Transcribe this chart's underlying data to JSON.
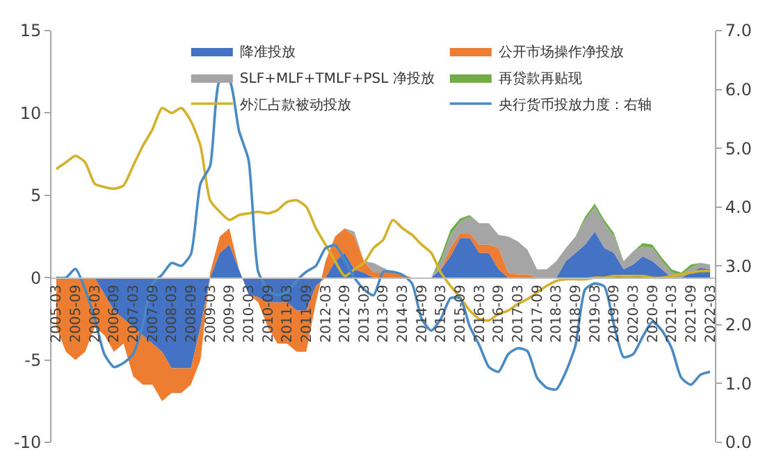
{
  "chart_data": {
    "type": "area",
    "stacked": true,
    "legend": "top",
    "categories": [
      "2005-03",
      null,
      "2005-09",
      null,
      "2006-03",
      null,
      "2006-09",
      null,
      "2007-03",
      null,
      "2007-09",
      null,
      "2008-03",
      null,
      "2008-09",
      null,
      "2009-03",
      null,
      "2009-09",
      null,
      "2010-03",
      null,
      "2010-09",
      null,
      "2011-03",
      null,
      "2011-09",
      null,
      "2012-03",
      null,
      "2012-09",
      null,
      "2013-03",
      null,
      "2013-09",
      null,
      "2014-03",
      null,
      "2014-09",
      null,
      "2015-03",
      null,
      "2015-09",
      null,
      "2016-03",
      null,
      "2016-09",
      null,
      "2017-03",
      null,
      "2017-09",
      null,
      "2018-03",
      null,
      "2018-09",
      null,
      "2019-03",
      null,
      "2019-09",
      null,
      "2020-03",
      null,
      "2020-09",
      null,
      "2021-03",
      null,
      "2021-09",
      null,
      "2022-03"
    ],
    "ylim": [
      -10,
      15
    ],
    "yticks": [
      -10,
      -5,
      0,
      5,
      10,
      15
    ],
    "y2lim": [
      0,
      7
    ],
    "y2ticks": [
      {
        "value": 0,
        "label": "0.0"
      },
      {
        "value": 1,
        "label": "1.0"
      },
      {
        "value": 2,
        "label": "2.0"
      },
      {
        "value": 3,
        "label": "3.0"
      },
      {
        "value": 4,
        "label": "4.0"
      },
      {
        "value": 5,
        "label": "5.0"
      },
      {
        "value": 6,
        "label": "6.0"
      },
      {
        "value": 7,
        "label": "7.0"
      }
    ],
    "series": [
      {
        "name": "降准投放",
        "type": "area",
        "color": "#4472c4",
        "values": [
          0,
          0,
          0,
          0,
          0,
          -1,
          -2,
          -2.5,
          -3,
          -3.5,
          -4,
          -4.5,
          -5.5,
          -5.5,
          -5.5,
          -3,
          0,
          1.5,
          2,
          0.5,
          -1,
          -1.2,
          -1.5,
          -1.5,
          -1.5,
          -2,
          -2,
          -0.5,
          0,
          1,
          1.5,
          0.5,
          0.3,
          0,
          0,
          0,
          0,
          0,
          0,
          0,
          0.5,
          1.3,
          2.4,
          2.4,
          1.5,
          1.5,
          0.5,
          0,
          0,
          0,
          0,
          0,
          0,
          1,
          1.5,
          2,
          2.8,
          1.8,
          1.5,
          0.5,
          0.8,
          1.3,
          1,
          0.5,
          0,
          0,
          0.3,
          0.6,
          0.5
        ]
      },
      {
        "name": "公开市场操作净投放",
        "type": "area",
        "color": "#ed7d31",
        "values": [
          -3,
          -4.5,
          -5,
          -4.5,
          -3,
          -2.5,
          -2.5,
          -1.5,
          -3,
          -3,
          -2.5,
          -3,
          -1.5,
          -1.5,
          -1,
          -2,
          0.3,
          1,
          1,
          0,
          0,
          -0.3,
          -1.5,
          -2.5,
          -2.5,
          -2.5,
          -2.5,
          -1,
          1,
          1.5,
          1.5,
          2,
          0.7,
          0.3,
          0.3,
          0.3,
          0.2,
          0,
          0,
          0,
          0,
          0.5,
          0.3,
          0.3,
          0.5,
          0.5,
          1.3,
          0.3,
          0.2,
          0.2,
          0,
          0,
          0,
          0,
          0,
          0,
          0,
          0,
          0,
          0,
          0,
          0,
          0,
          0,
          0,
          0,
          0,
          0,
          0
        ]
      },
      {
        "name": "SLF+MLF+TMLF+PSL 净投放",
        "type": "area",
        "color": "#a5a5a5",
        "values": [
          0,
          0,
          0,
          0,
          0,
          0,
          0,
          0,
          0,
          0,
          0,
          0,
          0,
          0,
          0,
          0,
          0,
          0,
          0,
          0,
          0,
          0,
          0,
          0,
          0,
          0,
          0,
          0,
          0,
          0,
          0,
          0.3,
          0,
          0.6,
          0.3,
          0,
          0,
          0,
          0,
          0,
          0.5,
          0.8,
          0.7,
          1,
          1.3,
          1.3,
          0.8,
          2.2,
          2,
          1.5,
          0.5,
          0.5,
          1,
          0.8,
          1,
          1.5,
          1.5,
          1.5,
          1,
          0.5,
          0.8,
          0.6,
          0.8,
          0.5,
          0.3,
          0.2,
          0.3,
          0.3,
          0.3
        ]
      },
      {
        "name": "再贷款再贴现",
        "type": "area",
        "color": "#70ad47",
        "values": [
          0,
          0,
          0,
          0,
          0,
          0,
          0,
          0,
          0,
          0,
          0,
          0,
          0,
          0,
          0,
          0,
          0,
          0,
          0,
          0,
          0,
          0,
          0,
          0,
          0,
          0,
          0,
          0,
          0,
          0,
          0,
          0,
          0,
          0,
          0,
          0,
          0,
          0,
          0,
          0,
          0.3,
          0.3,
          0.2,
          0.1,
          0,
          0,
          0,
          0,
          0,
          0,
          0,
          0,
          0,
          0,
          0,
          0.2,
          0.2,
          0.2,
          0.2,
          0,
          0,
          0.2,
          0.2,
          0.2,
          0.2,
          0.1,
          0.2,
          0,
          0
        ]
      },
      {
        "name": "外汇占款被动投放",
        "type": "line",
        "color": "#d4b12a",
        "values": [
          6.6,
          7,
          7.4,
          7,
          5.7,
          5.5,
          5.4,
          5.6,
          6.8,
          8,
          9,
          10.3,
          10,
          10.3,
          9.5,
          8,
          4.7,
          4,
          3.5,
          3.8,
          3.9,
          4,
          3.9,
          4.1,
          4.6,
          4.7,
          4.3,
          3,
          2,
          1,
          0.1,
          0.5,
          0.9,
          1.8,
          2.3,
          3.5,
          3,
          2.6,
          2,
          1.5,
          0.3,
          -0.5,
          -1.2,
          -2,
          -2.5,
          -2.6,
          -2.2,
          -2,
          -1.6,
          -1.3,
          -0.9,
          -0.5,
          -0.2,
          -0.1,
          -0.1,
          -0.1,
          0,
          0,
          0.1,
          0.1,
          0.1,
          0.1,
          0,
          0,
          0.1,
          0.2,
          0.3,
          0.4,
          0.4
        ]
      },
      {
        "name": "央行货币投放力度：右轴",
        "type": "line",
        "axis": "y2",
        "color": "#4a8ac4",
        "values": [
          2.8,
          2.8,
          2.95,
          2.6,
          2.1,
          1.5,
          1.28,
          1.35,
          1.5,
          2,
          2.7,
          2.85,
          3.05,
          3,
          3.2,
          4.4,
          4.7,
          6.15,
          6.15,
          5.3,
          4.8,
          2.9,
          2.6,
          2.5,
          2.55,
          2.75,
          2.9,
          3,
          3.3,
          3.35,
          3.1,
          2.8,
          2.6,
          2.5,
          2.9,
          2.9,
          2.85,
          2.7,
          2.1,
          1.9,
          2.1,
          2.45,
          2.45,
          1.97,
          1.65,
          1.28,
          1.2,
          1.5,
          1.6,
          1.55,
          1.1,
          0.93,
          0.9,
          1.2,
          1.65,
          2.6,
          2.7,
          2.65,
          2,
          1.45,
          1.5,
          1.8,
          2.05,
          1.9,
          1.6,
          1.1,
          0.98,
          1.15,
          1.2
        ]
      }
    ]
  }
}
